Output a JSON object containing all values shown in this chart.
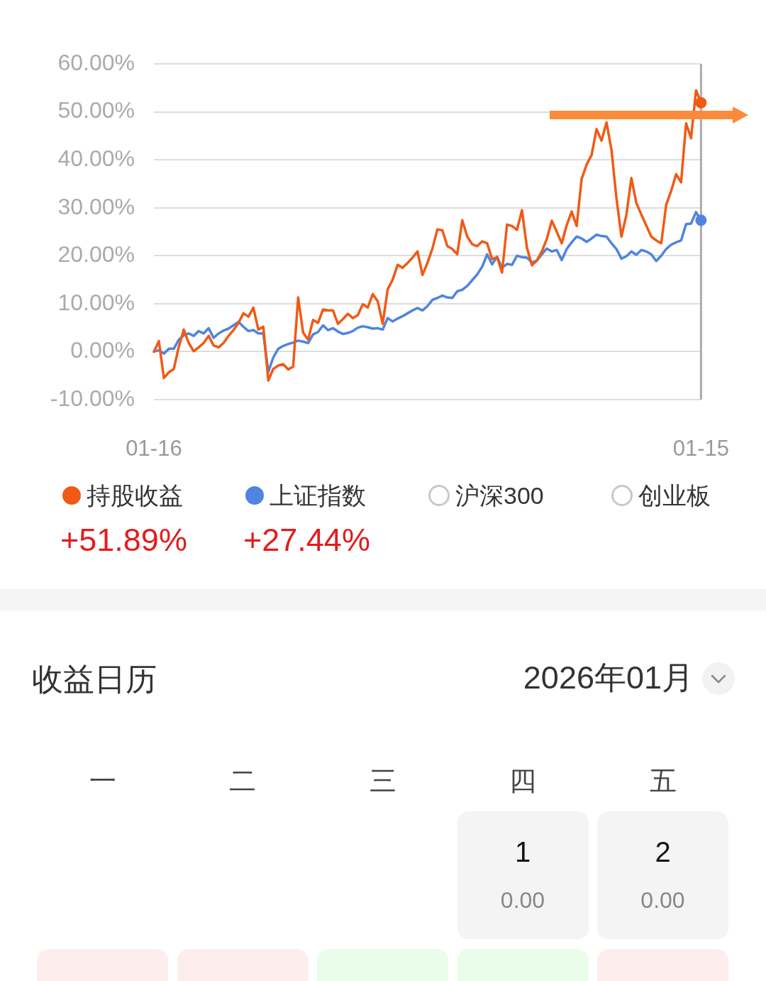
{
  "chart_data": [
    {
      "type": "line",
      "categories": [
        "01-16",
        null,
        null,
        null,
        null,
        null,
        null,
        null,
        null,
        null,
        null,
        null,
        null,
        null,
        null,
        null,
        null,
        null,
        null,
        null,
        null,
        null,
        null,
        null,
        null,
        null,
        null,
        null,
        null,
        null,
        null,
        null,
        null,
        null,
        null,
        null,
        null,
        null,
        null,
        null,
        null,
        null,
        null,
        null,
        null,
        null,
        null,
        null,
        null,
        null,
        null,
        null,
        null,
        null,
        null,
        null,
        null,
        null,
        null,
        null,
        null,
        null,
        null,
        null,
        null,
        null,
        null,
        null,
        null,
        null,
        null,
        null,
        null,
        null,
        null,
        null,
        null,
        null,
        null,
        null,
        null,
        null,
        null,
        null,
        null,
        null,
        null,
        null,
        null,
        null,
        null,
        null,
        null,
        null,
        null,
        null,
        null,
        null,
        null,
        null,
        null,
        null,
        null,
        null,
        null,
        null,
        null,
        null,
        null,
        null,
        "01-15"
      ],
      "series": [
        {
          "name": "持股收益",
          "color": "#f05a16",
          "values": [
            0,
            2.2,
            -5.5,
            -4.3,
            -3.6,
            1.0,
            4.6,
            1.8,
            0.1,
            0.9,
            1.8,
            3.3,
            1.3,
            0.9,
            1.8,
            3.3,
            4.5,
            6.0,
            8.0,
            7.3,
            9.2,
            4.6,
            5.2,
            -6.0,
            -3.6,
            -2.9,
            -2.6,
            -3.7,
            -3.1,
            11.3,
            4.0,
            2.5,
            6.6,
            6.0,
            8.8,
            8.6,
            8.6,
            5.8,
            6.8,
            7.9,
            7.0,
            7.6,
            9.9,
            9.2,
            12.0,
            10.5,
            5.8,
            13.0,
            15.0,
            18.1,
            17.5,
            18.5,
            19.6,
            20.9,
            16.0,
            18.5,
            21.5,
            25.5,
            25.3,
            22.0,
            21.4,
            20.3,
            27.4,
            24.0,
            22.4,
            22.0,
            23.0,
            22.6,
            19.3,
            19.7,
            16.5,
            26.5,
            26.2,
            25.4,
            29.5,
            21.7,
            18.0,
            19.0,
            20.9,
            23.5,
            27.3,
            25.0,
            22.6,
            26.4,
            29.2,
            26.2,
            36.0,
            39.0,
            41.0,
            46.4,
            44.0,
            47.8,
            42.1,
            32.0,
            24.0,
            28.5,
            36.2,
            31.0,
            28.6,
            26.3,
            24.0,
            23.2,
            22.6,
            30.6,
            33.5,
            37.0,
            35.3,
            47.6,
            44.5,
            54.5,
            51.9
          ]
        },
        {
          "name": "上证指数",
          "color": "#4f84e0",
          "values": [
            0,
            0.3,
            -0.4,
            0.6,
            0.6,
            2.5,
            3.4,
            3.8,
            3.3,
            4.3,
            3.8,
            4.9,
            2.9,
            3.8,
            4.4,
            4.8,
            5.5,
            6.2,
            5.2,
            4.3,
            4.5,
            3.8,
            3.8,
            -4.2,
            -1.2,
            0.6,
            1.2,
            1.6,
            1.9,
            2.3,
            2.1,
            1.8,
            3.6,
            4.1,
            5.5,
            4.5,
            4.9,
            4.2,
            3.7,
            3.9,
            4.3,
            5.0,
            5.3,
            5.1,
            4.8,
            4.9,
            4.6,
            7.0,
            6.3,
            6.9,
            7.4,
            8.0,
            8.6,
            9.1,
            8.6,
            9.5,
            10.8,
            11.2,
            11.7,
            11.3,
            11.2,
            12.6,
            12.9,
            13.7,
            14.9,
            16.1,
            17.7,
            20.3,
            18.2,
            19.8,
            17.5,
            18.3,
            18.1,
            20.0,
            19.7,
            19.6,
            18.6,
            19.0,
            20.3,
            21.5,
            20.9,
            21.2,
            19.1,
            21.4,
            22.8,
            24.0,
            23.6,
            22.9,
            23.6,
            24.4,
            24.1,
            24.0,
            22.6,
            21.4,
            19.4,
            19.9,
            20.9,
            20.2,
            21.2,
            20.9,
            20.3,
            18.9,
            20.0,
            21.4,
            22.3,
            22.8,
            23.2,
            26.6,
            26.7,
            29.1,
            27.4
          ]
        },
        {
          "name": "沪深300",
          "color": "#c8c8c8",
          "values": [
            null,
            null,
            null,
            null,
            null,
            null,
            null,
            null,
            null,
            null,
            null,
            null,
            null,
            null,
            null,
            null,
            null,
            null,
            null,
            null,
            null,
            null,
            null,
            null,
            null,
            null,
            null,
            null,
            null,
            null,
            null,
            null,
            null,
            null,
            null,
            null,
            null,
            null,
            null,
            null,
            null,
            null,
            null,
            null,
            null,
            null,
            null,
            null,
            null,
            null,
            null,
            null,
            null,
            null,
            null,
            null,
            null,
            null,
            null,
            null,
            null,
            null,
            null,
            null,
            null,
            null,
            null,
            null,
            null,
            null,
            null,
            null,
            null,
            null,
            null,
            null,
            null,
            null,
            null,
            null,
            null,
            null,
            null,
            null,
            null,
            null,
            null,
            null,
            null,
            null,
            null,
            null,
            null,
            null,
            null,
            null,
            null,
            null,
            null,
            null,
            null,
            null,
            null,
            null,
            null,
            null,
            null,
            null,
            null,
            null,
            null
          ]
        },
        {
          "name": "创业板",
          "color": "#c8c8c8",
          "values": [
            null,
            null,
            null,
            null,
            null,
            null,
            null,
            null,
            null,
            null,
            null,
            null,
            null,
            null,
            null,
            null,
            null,
            null,
            null,
            null,
            null,
            null,
            null,
            null,
            null,
            null,
            null,
            null,
            null,
            null,
            null,
            null,
            null,
            null,
            null,
            null,
            null,
            null,
            null,
            null,
            null,
            null,
            null,
            null,
            null,
            null,
            null,
            null,
            null,
            null,
            null,
            null,
            null,
            null,
            null,
            null,
            null,
            null,
            null,
            null,
            null,
            null,
            null,
            null,
            null,
            null,
            null,
            null,
            null,
            null,
            null,
            null,
            null,
            null,
            null,
            null,
            null,
            null,
            null,
            null,
            null,
            null,
            null,
            null,
            null,
            null,
            null,
            null,
            null,
            null,
            null,
            null,
            null,
            null,
            null,
            null,
            null,
            null,
            null,
            null,
            null,
            null,
            null,
            null,
            null,
            null,
            null,
            null,
            null,
            null,
            null
          ]
        }
      ],
      "ylim": [
        -10,
        60
      ],
      "yticks": [
        {
          "value": -10,
          "label": "-10.00%"
        },
        {
          "value": 0,
          "label": "0.00%"
        },
        {
          "value": 10,
          "label": "10.00%"
        },
        {
          "value": 20,
          "label": "20.00%"
        },
        {
          "value": 30,
          "label": "30.00%"
        },
        {
          "value": 40,
          "label": "40.00%"
        },
        {
          "value": 50,
          "label": "50.00%"
        },
        {
          "value": 60,
          "label": "60.00%"
        }
      ],
      "grid": "y",
      "legend": "bottom",
      "ref_lines": [
        {
          "axis": "x",
          "value": "01-15",
          "color": "#aaaaaa"
        }
      ],
      "annotations": [
        "+51.89%",
        "+27.44%"
      ]
    },
    {
      "type": "other",
      "title": "收益日历",
      "subtitle": "2026年01月",
      "categories": [
        "一",
        "二",
        "三",
        "四",
        "五"
      ],
      "annotations": [
        "1",
        "0.00",
        "2",
        "0.00"
      ]
    }
  ]
}
